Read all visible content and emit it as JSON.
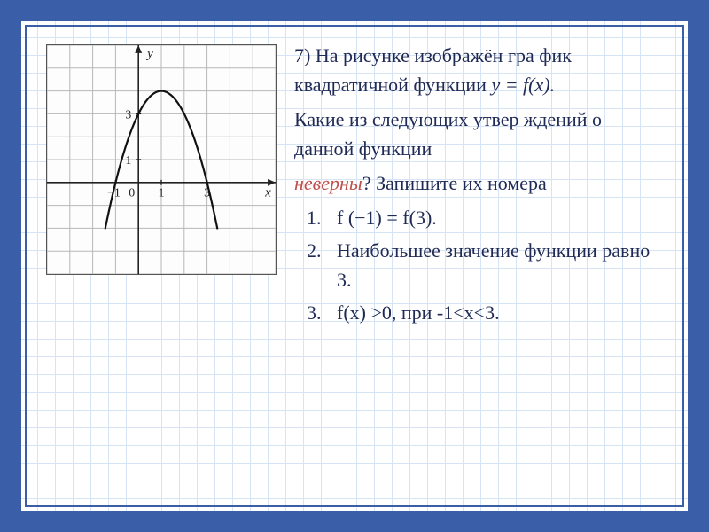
{
  "task": {
    "number": "7)",
    "line1": "На рисунке изображён гра фик квадратичной функции",
    "formula": "y = f(x).",
    "line2": "Какие из следующих утвер ждений о данной функции",
    "question_word": "неверны",
    "question_rest": "?  Запишите их номера",
    "options": [
      "f (−1) = f(3).",
      "Наибольшее значение функции равно 3.",
      "f(x) >0, при -1<x<3."
    ]
  },
  "graph": {
    "type": "line",
    "background_color": "#fdfdfd",
    "grid_color": "#b7b7b7",
    "axis_color": "#222222",
    "curve_color": "#111111",
    "curve_width": 2.2,
    "x_axis_label": "x",
    "y_axis_label": "y",
    "xlim": [
      -4,
      6
    ],
    "ylim": [
      -4,
      6
    ],
    "x_tick_labels": [
      {
        "v": -1,
        "label": "−1"
      },
      {
        "v": 0,
        "label": "0"
      },
      {
        "v": 1,
        "label": "1"
      },
      {
        "v": 3,
        "label": "3"
      }
    ],
    "y_tick_labels": [
      {
        "v": 1,
        "label": "1"
      },
      {
        "v": 3,
        "label": "3"
      }
    ],
    "parabola": {
      "a": -1,
      "h": 1,
      "k": 4,
      "x_from": -1.45,
      "x_to": 3.45
    }
  },
  "colors": {
    "frame": "#3a5fa8",
    "grid_bg": "#d6e4f5",
    "text": "#1f2a55",
    "emphasis": "#c0504d"
  }
}
